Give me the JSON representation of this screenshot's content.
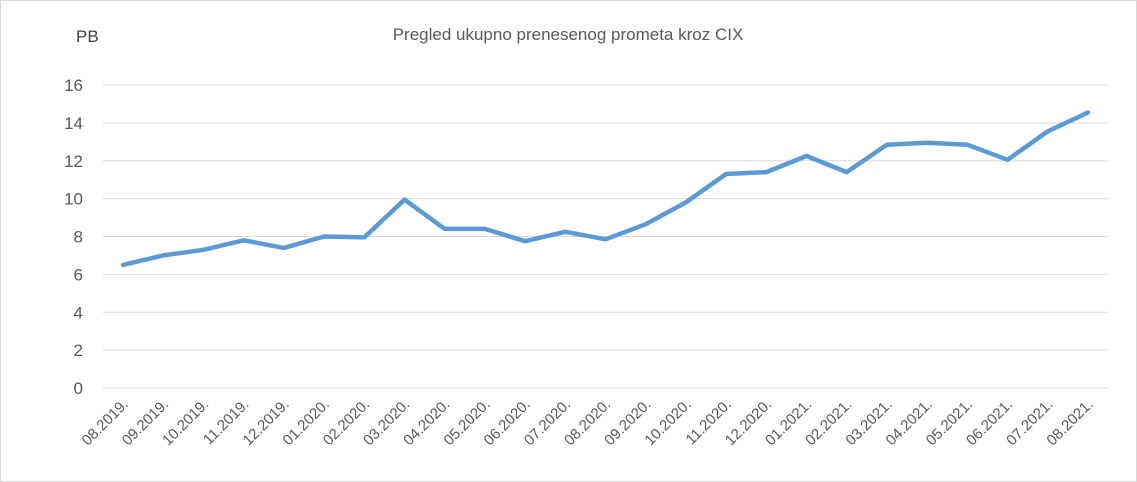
{
  "chart_data": {
    "type": "line",
    "title": "Pregled ukupno prenesenog prometa kroz CIX",
    "xlabel": "",
    "ylabel": "PB",
    "ylim": [
      0,
      16
    ],
    "yticks": [
      "0",
      "2",
      "4",
      "6",
      "8",
      "10",
      "12",
      "14",
      "16"
    ],
    "grid": true,
    "legend": "none",
    "line_color": "#5b9bd5",
    "grid_color": "#d9d9d9",
    "categories": [
      "08.2019.",
      "09.2019.",
      "10.2019.",
      "11.2019.",
      "12.2019.",
      "01.2020.",
      "02.2020.",
      "03.2020.",
      "04.2020.",
      "05.2020.",
      "06.2020.",
      "07.2020.",
      "08.2020.",
      "09.2020.",
      "10.2020.",
      "11.2020.",
      "12.2020.",
      "01.2021.",
      "02.2021.",
      "03.2021.",
      "04.2021.",
      "05.2021.",
      "06.2021.",
      "07.2021.",
      "08.2021."
    ],
    "values": [
      6.5,
      7.0,
      7.3,
      7.8,
      7.4,
      8.0,
      7.95,
      9.95,
      8.4,
      8.4,
      7.75,
      8.25,
      7.85,
      8.65,
      9.8,
      11.3,
      11.4,
      12.25,
      11.4,
      12.85,
      12.95,
      12.85,
      12.05,
      13.55,
      14.55
    ]
  }
}
